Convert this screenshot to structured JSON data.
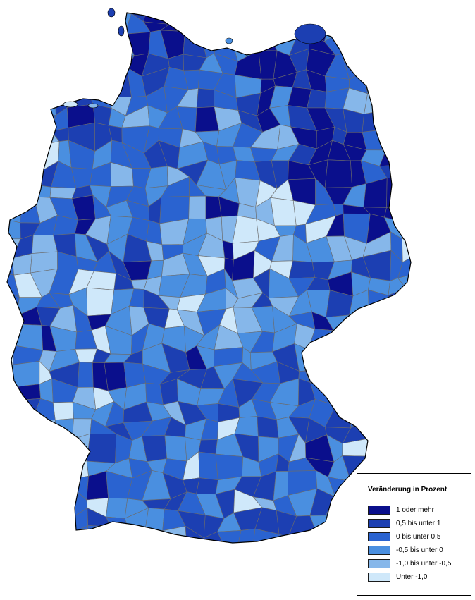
{
  "colors": {
    "c1": "#0a0f8c",
    "c2": "#1c3fb2",
    "c3": "#2a63d0",
    "c4": "#4a8fe0",
    "c5": "#86b7ea",
    "c6": "#cfe8fa",
    "border": "#6b6b6b",
    "outline": "#000000"
  },
  "legend": {
    "title": "Veränderung in Prozent",
    "items": [
      {
        "label": "1 oder mehr",
        "color": "#0a0f8c"
      },
      {
        "label": "0,5 bis unter 1",
        "color": "#1c3fb2"
      },
      {
        "label": "0 bis unter 0,5",
        "color": "#2a63d0"
      },
      {
        "label": "-0,5 bis unter 0",
        "color": "#4a8fe0"
      },
      {
        "label": "-1,0 bis unter -0,5",
        "color": "#86b7ea"
      },
      {
        "label": "Unter -1,0",
        "color": "#cfe8fa"
      }
    ]
  }
}
